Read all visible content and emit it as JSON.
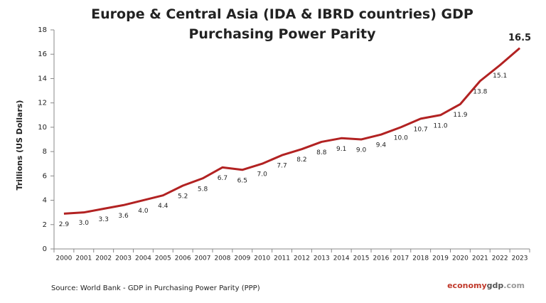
{
  "chart_data": {
    "type": "line",
    "title": "Europe & Central Asia (IDA & IBRD countries) GDP Purchasing Power Parity",
    "y_label": "Trillions (US Dollars)",
    "categories": [
      "2000",
      "2001",
      "2002",
      "2003",
      "2004",
      "2005",
      "2006",
      "2007",
      "2008",
      "2009",
      "2010",
      "2011",
      "2012",
      "2013",
      "2014",
      "2015",
      "2016",
      "2017",
      "2018",
      "2019",
      "2020",
      "2021",
      "2022",
      "2023"
    ],
    "values": [
      2.9,
      3.0,
      3.3,
      3.6,
      4.0,
      4.4,
      5.2,
      5.8,
      6.7,
      6.5,
      7.0,
      7.7,
      8.2,
      8.8,
      9.1,
      9.0,
      9.4,
      10.0,
      10.7,
      11.0,
      11.9,
      13.8,
      15.1,
      16.5
    ],
    "value_labels": [
      "2.9",
      "3.0",
      "3.3",
      "3.6",
      "4.0",
      "4.4",
      "5.2",
      "5.8",
      "6.7",
      "6.5",
      "7.0",
      "7.7",
      "8.2",
      "8.8",
      "9.1",
      "9.0",
      "9.4",
      "10.0",
      "10.7",
      "11.0",
      "11.9",
      "13.8",
      "15.1",
      "16.5"
    ],
    "color": "#b22222",
    "ylim": [
      0,
      18
    ],
    "yticks": [
      0,
      2,
      4,
      6,
      8,
      10,
      12,
      14,
      16,
      18
    ],
    "grid": false,
    "source": "Source:  World Bank -  GDP  in Purchasing Power Parity (PPP)",
    "brand": [
      "economy",
      "gdp",
      ".com"
    ]
  }
}
